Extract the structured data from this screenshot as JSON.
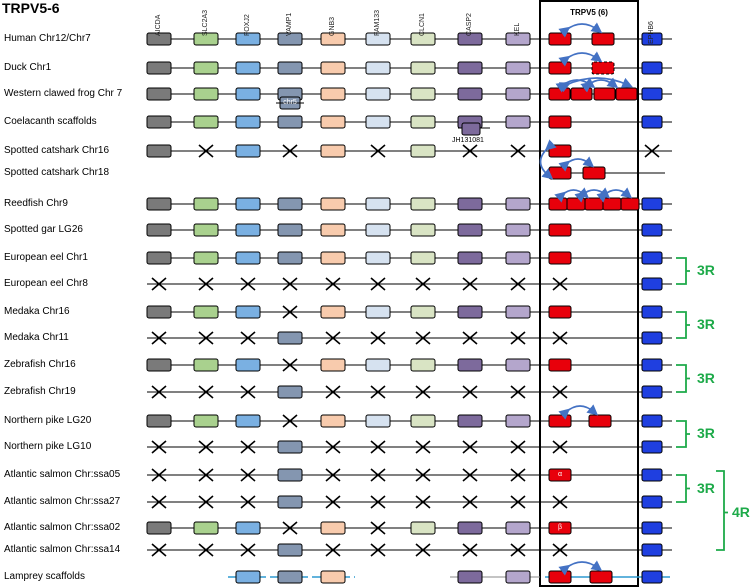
{
  "title": "TRPV5-6",
  "genes": [
    "AICDA",
    "SLC2A3",
    "FOXJ2",
    "VAMP1",
    "GNB3",
    "FAM133",
    "CLCN1",
    "CASP2",
    "KEL"
  ],
  "gene_colors": [
    "#7a7a7a",
    "#a9d18e",
    "#7ab0e2",
    "#8496b0",
    "#f8cbad",
    "#d6e2f0",
    "#d9e4c4",
    "#7d6a9c",
    "#b4a6cc"
  ],
  "trpv_header": "TRPV5 (6)",
  "right_gene": "EPHB6",
  "colors": {
    "trpv": "#e8000b",
    "ephb6": "#1f3fe0",
    "arrow": "#4472c4",
    "bracket": "#1daa49",
    "dup_line": "#2e9ad0"
  },
  "rows": [
    {
      "label": "Human Chr12/Chr7",
      "genes": "GGGGGGGGG",
      "trpv": 2,
      "ephb6": "box"
    },
    {
      "label": "Duck Chr1",
      "genes": "GGGGGGGGG",
      "trpv": 2,
      "ephb6": "box"
    },
    {
      "label": "Western clawed frog Chr 7",
      "genes": "GGGGGGGGG",
      "trpv": 4,
      "ephb6": "box"
    },
    {
      "label": "Coelacanth scaffolds",
      "genes": "GGGGGGGGG",
      "trpv": 1,
      "ephb6": "box"
    },
    {
      "label": "Spotted catshark Chr16",
      "genes": "GXGXGXGXX",
      "trpv": 1,
      "ephb6": "cross"
    },
    {
      "label": "Spotted catshark Chr18",
      "genes": "---------",
      "trpv": 2,
      "ephb6": "none"
    },
    {
      "label": "Reedfish Chr9",
      "genes": "GGGGGGGGG",
      "trpv": 5,
      "ephb6": "box"
    },
    {
      "label": "Spotted gar LG26",
      "genes": "GGGGGGGGG",
      "trpv": 1,
      "ephb6": "box"
    },
    {
      "label": "European eel Chr1",
      "genes": "GGGGGGGGG",
      "trpv": 1,
      "ephb6": "box"
    },
    {
      "label": "European eel Chr8",
      "genes": "XXXXXXXXX",
      "trpv": 0,
      "ephb6": "box"
    },
    {
      "label": "Medaka Chr16",
      "genes": "GGGXGGGGG",
      "trpv": 1,
      "ephb6": "box"
    },
    {
      "label": "Medaka Chr11",
      "genes": "XXXGXXXXX",
      "trpv": 0,
      "ephb6": "box"
    },
    {
      "label": "Zebrafish Chr16",
      "genes": "GGGXGGGGG",
      "trpv": 1,
      "ephb6": "box"
    },
    {
      "label": "Zebrafish Chr19",
      "genes": "XXXGXXXXX",
      "trpv": 0,
      "ephb6": "box"
    },
    {
      "label": "Northern pike LG20",
      "genes": "GGGXGGGGG",
      "trpv": 2,
      "ephb6": "box"
    },
    {
      "label": "Northern pike LG10",
      "genes": "XXXGXXXXX",
      "trpv": 0,
      "ephb6": "box"
    },
    {
      "label": "Atlantic salmon Chr:ssa05",
      "genes": "XXXGXXXXX",
      "trpv": 1,
      "ephb6": "box"
    },
    {
      "label": "Atlantic salmon Chr:ssa27",
      "genes": "XXXGXXXXX",
      "trpv": 0,
      "ephb6": "box"
    },
    {
      "label": "Atlantic salmon Chr:ssa02",
      "genes": "GGGXGXGGG",
      "trpv": 1,
      "ephb6": "box"
    },
    {
      "label": "Atlantic salmon Chr:ssa14",
      "genes": "XXXGXXXXX",
      "trpv": 0,
      "ephb6": "box"
    },
    {
      "label": "Lamprey scaffolds",
      "genes": "--GGG--GG",
      "trpv": 2,
      "ephb6": "box"
    }
  ],
  "annotations": {
    "chr5": "chr5",
    "scaffold": "JH131081",
    "alpha": "α",
    "beta": "β"
  },
  "brackets": [
    "3R",
    "3R",
    "3R",
    "3R",
    "3R",
    "4R"
  ]
}
